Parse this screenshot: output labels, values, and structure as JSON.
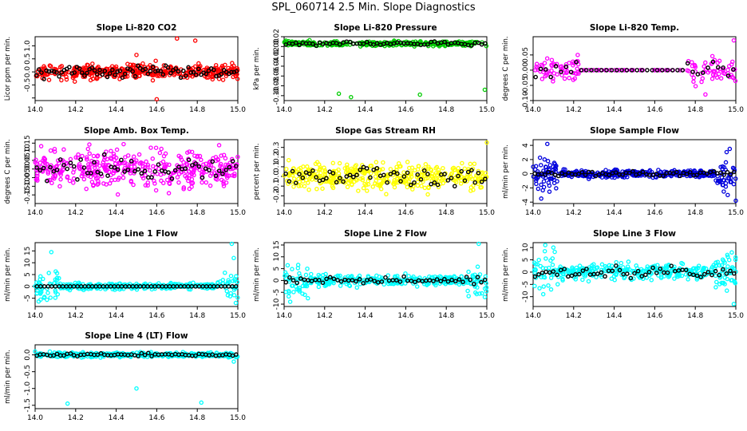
{
  "page": {
    "title": "SPL_060714  2.5 Min. Slope Diagnostics"
  },
  "colors": {
    "frame": "#000000",
    "reference": "#000000"
  },
  "chart_data": [
    {
      "id": "co2",
      "type": "scatter",
      "title": "Slope Li-820 CO2",
      "ylabel": "Licor ppm per min.",
      "color": "#ff0000",
      "xlim": [
        14.0,
        15.0
      ],
      "ylim": [
        -1.1,
        1.35
      ],
      "xticks": [
        14.0,
        14.2,
        14.4,
        14.6,
        14.8,
        15.0
      ],
      "xtick_labels": [
        "14.0",
        "14.2",
        "14.4",
        "14.6",
        "14.8",
        "15.0"
      ],
      "yticks": [
        -1.0,
        -0.5,
        0.0,
        0.5,
        1.0
      ],
      "ytick_labels": [
        "",
        "-0.5",
        "0.0",
        "0.5",
        "1.0"
      ],
      "spread": 0.2,
      "npts": 400,
      "nref": 80,
      "seed": 11,
      "outliers": [
        [
          14.79,
          1.2
        ],
        [
          14.6,
          -1.05
        ],
        [
          14.7,
          1.28
        ],
        [
          14.5,
          0.65
        ]
      ]
    },
    {
      "id": "pressure",
      "type": "scatter",
      "title": "Slope Li-820 Pressure",
      "ylabel": "kPa per min.",
      "color": "#00cc00",
      "xlim": [
        14.0,
        15.0
      ],
      "ylim": [
        -0.11,
        0.02
      ],
      "xticks": [
        14.0,
        14.2,
        14.4,
        14.6,
        14.8,
        15.0
      ],
      "xtick_labels": [
        "14.0",
        "14.2",
        "14.4",
        "14.6",
        "14.8",
        "15.0"
      ],
      "yticks": [
        -0.1,
        -0.08,
        -0.06,
        -0.04,
        -0.02,
        0.0,
        0.02
      ],
      "ytick_labels": [
        "-0.10",
        "-0.08",
        "-0.06",
        "-0.04",
        "-0.02",
        "0.00",
        "0.02"
      ],
      "spread": 0.0035,
      "npts": 300,
      "nref": 60,
      "seed": 23,
      "offset": 0.006,
      "outliers": [
        [
          14.33,
          -0.103
        ],
        [
          14.67,
          -0.098
        ],
        [
          14.27,
          -0.096
        ],
        [
          14.99,
          -0.088
        ]
      ]
    },
    {
      "id": "licor_temp",
      "type": "scatter",
      "title": "Slope Li-820 Temp.",
      "ylabel": "degrees C per min.",
      "color": "#ff00ff",
      "xlim": [
        14.0,
        15.0
      ],
      "ylim": [
        -0.1,
        0.11
      ],
      "xticks": [
        14.0,
        14.2,
        14.4,
        14.6,
        14.8,
        15.0
      ],
      "xtick_labels": [
        "14.0",
        "14.2",
        "14.4",
        "14.6",
        "14.8",
        "15.0"
      ],
      "yticks": [
        -0.1,
        -0.05,
        0.0,
        0.05
      ],
      "ytick_labels": [
        "-0.10",
        "-0.05",
        "0.00",
        "0.05"
      ],
      "spread": 0.03,
      "npts": 220,
      "nref": 40,
      "seed": 31,
      "edge_only": [
        14.23,
        14.76
      ],
      "outliers": [
        [
          14.99,
          0.098
        ],
        [
          14.22,
          0.05
        ],
        [
          14.85,
          -0.08
        ]
      ]
    },
    {
      "id": "amb_box",
      "type": "scatter",
      "title": "Slope Amb. Box Temp.",
      "ylabel": "degrees C per min.",
      "color": "#ff00ff",
      "xlim": [
        14.0,
        15.0
      ],
      "ylim": [
        -0.2,
        0.17
      ],
      "xticks": [
        14.0,
        14.2,
        14.4,
        14.6,
        14.8,
        15.0
      ],
      "xtick_labels": [
        "14.0",
        "14.2",
        "14.4",
        "14.6",
        "14.8",
        "15.0"
      ],
      "yticks": [
        -0.15,
        -0.1,
        -0.05,
        0.0,
        0.05,
        0.1,
        0.15
      ],
      "ytick_labels": [
        "-0.15",
        "-0.10",
        "-0.05",
        "0.00",
        "0.05",
        "0.10",
        "0.15"
      ],
      "spread": 0.075,
      "npts": 400,
      "nref": 60,
      "seed": 43,
      "outliers": []
    },
    {
      "id": "rh",
      "type": "scatter",
      "title": "Slope Gas Stream RH",
      "ylabel": "percent per min.",
      "color": "#ffff00",
      "xlim": [
        14.0,
        15.0
      ],
      "ylim": [
        -0.28,
        0.38
      ],
      "xticks": [
        14.0,
        14.2,
        14.4,
        14.6,
        14.8,
        15.0
      ],
      "xtick_labels": [
        "14.0",
        "14.2",
        "14.4",
        "14.6",
        "14.8",
        "15.0"
      ],
      "yticks": [
        -0.2,
        -0.1,
        0.0,
        0.1,
        0.2,
        0.3
      ],
      "ytick_labels": [
        "-0.2",
        "-0.1",
        "0.0",
        "0.1",
        "0.2",
        "0.3"
      ],
      "spread": 0.1,
      "npts": 400,
      "nref": 60,
      "seed": 57,
      "outliers": [
        [
          15.0,
          0.35
        ]
      ]
    },
    {
      "id": "sample_flow",
      "type": "scatter",
      "title": "Slope Sample Flow",
      "ylabel": "ml/min per min.",
      "color": "#0000dd",
      "xlim": [
        14.0,
        15.0
      ],
      "ylim": [
        -4.2,
        4.8
      ],
      "xticks": [
        14.0,
        14.2,
        14.4,
        14.6,
        14.8,
        15.0
      ],
      "xtick_labels": [
        "14.0",
        "14.2",
        "14.4",
        "14.6",
        "14.8",
        "15.0"
      ],
      "yticks": [
        -4,
        -2,
        0,
        2,
        4
      ],
      "ytick_labels": [
        "-4",
        "-2",
        "0",
        "2",
        "4"
      ],
      "spread": 0.35,
      "npts": 400,
      "nref": 60,
      "seed": 67,
      "edge_spread": 1.6,
      "outliers": [
        [
          14.07,
          4.2
        ],
        [
          14.97,
          3.5
        ],
        [
          14.96,
          -3.0
        ],
        [
          14.04,
          -3.5
        ],
        [
          15.0,
          -3.8
        ]
      ]
    },
    {
      "id": "line1",
      "type": "scatter",
      "title": "Slope Line 1 Flow",
      "ylabel": "ml/min per min.",
      "color": "#00ffff",
      "xlim": [
        14.0,
        15.0
      ],
      "ylim": [
        -8.5,
        18.5
      ],
      "xticks": [
        14.0,
        14.2,
        14.4,
        14.6,
        14.8,
        15.0
      ],
      "xtick_labels": [
        "14.0",
        "14.2",
        "14.4",
        "14.6",
        "14.8",
        "15.0"
      ],
      "yticks": [
        -5,
        0,
        5,
        10,
        15
      ],
      "ytick_labels": [
        "-5",
        "0",
        "5",
        "10",
        "15"
      ],
      "spread": 0.9,
      "npts": 350,
      "nref": 55,
      "seed": 71,
      "edge_spread": 4.0,
      "ref_flat": true,
      "outliers": [
        [
          14.08,
          14.5
        ],
        [
          14.97,
          18
        ],
        [
          14.98,
          12
        ],
        [
          14.99,
          -7
        ]
      ]
    },
    {
      "id": "line2",
      "type": "scatter",
      "title": "Slope Line 2 Flow",
      "ylabel": "ml/min per min.",
      "color": "#00ffff",
      "xlim": [
        14.0,
        15.0
      ],
      "ylim": [
        -11,
        16
      ],
      "xticks": [
        14.0,
        14.2,
        14.4,
        14.6,
        14.8,
        15.0
      ],
      "xtick_labels": [
        "14.0",
        "14.2",
        "14.4",
        "14.6",
        "14.8",
        "15.0"
      ],
      "yticks": [
        -10,
        -5,
        0,
        5,
        10,
        15
      ],
      "ytick_labels": [
        "-10",
        "-5",
        "0",
        "5",
        "10",
        "15"
      ],
      "spread": 1.5,
      "npts": 350,
      "nref": 55,
      "seed": 83,
      "edge_spread": 4.5,
      "outliers": [
        [
          14.96,
          15.5
        ],
        [
          14.03,
          -9
        ],
        [
          14.99,
          -7
        ]
      ]
    },
    {
      "id": "line3",
      "type": "scatter",
      "title": "Slope Line 3 Flow",
      "ylabel": "ml/min per min.",
      "color": "#00ffff",
      "xlim": [
        14.0,
        15.0
      ],
      "ylim": [
        -14,
        12
      ],
      "xticks": [
        14.0,
        14.2,
        14.4,
        14.6,
        14.8,
        15.0
      ],
      "xtick_labels": [
        "14.0",
        "14.2",
        "14.4",
        "14.6",
        "14.8",
        "15.0"
      ],
      "yticks": [
        -10,
        -5,
        0,
        5,
        10
      ],
      "ytick_labels": [
        "-10",
        "-5",
        "0",
        "5",
        "10"
      ],
      "spread": 2.2,
      "npts": 350,
      "nref": 55,
      "seed": 97,
      "edge_spread": 5.0,
      "outliers": [
        [
          14.06,
          11
        ],
        [
          14.1,
          10
        ],
        [
          14.05,
          -9
        ],
        [
          14.99,
          -13
        ],
        [
          14.98,
          8
        ]
      ]
    },
    {
      "id": "line4",
      "type": "scatter",
      "title": "Slope Line 4 (LT) Flow",
      "ylabel": "ml/min per min.",
      "color": "#00ffff",
      "xlim": [
        14.0,
        15.0
      ],
      "ylim": [
        -1.6,
        0.3
      ],
      "xticks": [
        14.0,
        14.2,
        14.4,
        14.6,
        14.8,
        15.0
      ],
      "xtick_labels": [
        "14.0",
        "14.2",
        "14.4",
        "14.6",
        "14.8",
        "15.0"
      ],
      "yticks": [
        -1.5,
        -1.0,
        -0.5,
        0.0
      ],
      "ytick_labels": [
        "-1.5",
        "-1.0",
        "-0.5",
        "0.0"
      ],
      "spread": 0.045,
      "npts": 400,
      "nref": 60,
      "seed": 103,
      "outliers": [
        [
          14.16,
          -1.45
        ],
        [
          14.5,
          -1.0
        ],
        [
          14.82,
          -1.42
        ],
        [
          14.0,
          0.1
        ],
        [
          14.98,
          -0.2
        ]
      ]
    }
  ]
}
